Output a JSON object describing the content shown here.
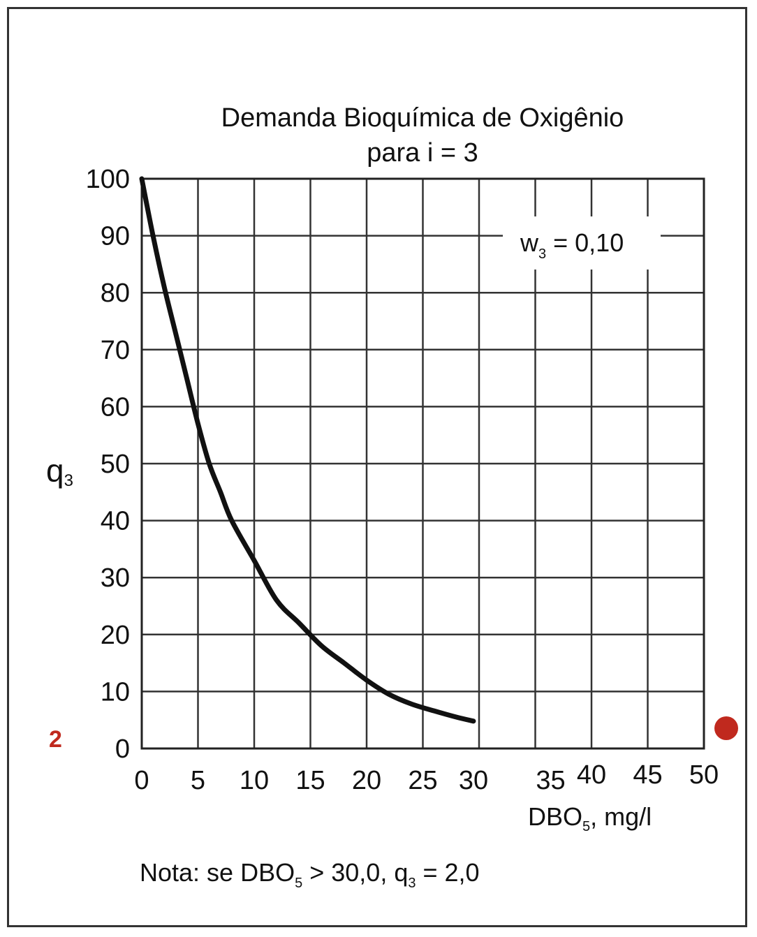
{
  "chart_data": {
    "type": "line",
    "title": "Demanda Bioquímica de Oxigênio",
    "subtitle": "para i = 3",
    "ylabel": {
      "main": "q",
      "sub": "3"
    },
    "xlabel": {
      "main": "DBO",
      "sub": "5",
      "rest": ", mg/l"
    },
    "xlim": [
      0,
      50
    ],
    "ylim": [
      0,
      100
    ],
    "x_ticks": [
      "0",
      "5",
      "10",
      "15",
      "20",
      "25",
      "30",
      "35",
      "40",
      "45",
      "50"
    ],
    "y_ticks": [
      "0",
      "10",
      "20",
      "30",
      "40",
      "50",
      "60",
      "70",
      "80",
      "90",
      "100"
    ],
    "grid": true,
    "weight_label": {
      "main": "w",
      "sub": "3",
      "rest": " = 0,10"
    },
    "note": {
      "a": "Nota: se DBO",
      "a_sub": "5",
      "b": " > 30,0,  q",
      "b_sub": "3",
      "c": " = 2,0"
    },
    "series": [
      {
        "x": [
          0,
          1,
          2,
          3,
          4,
          5,
          6,
          7,
          8,
          10,
          12,
          14,
          16,
          18,
          20,
          22,
          24,
          26,
          28,
          29.5
        ],
        "y": [
          100,
          90,
          81,
          73,
          65,
          57,
          50,
          45,
          40,
          33,
          26,
          22,
          18,
          15,
          12,
          9.5,
          7.8,
          6.6,
          5.5,
          4.8
        ]
      }
    ],
    "annotations": {
      "side_value": "2",
      "side_value_color": "#c0291e",
      "marker_color": "#c0291e"
    }
  }
}
